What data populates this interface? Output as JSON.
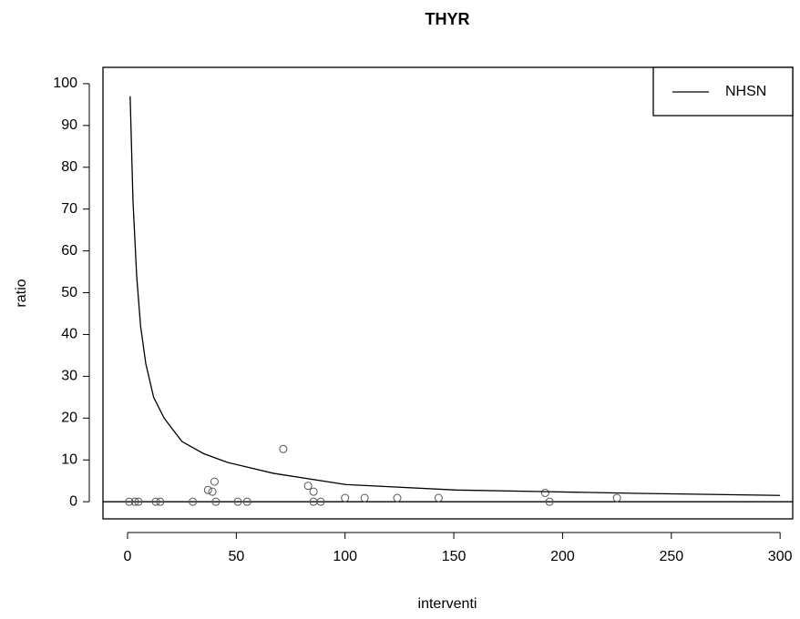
{
  "chart_data": {
    "type": "scatter",
    "title": "THYR",
    "x_label": "interventi",
    "y_label": "ratio",
    "xlim": [
      -11.3,
      305.8
    ],
    "ylim": [
      -4.1,
      103.9
    ],
    "xticks": [
      0,
      50,
      100,
      150,
      200,
      250,
      300
    ],
    "yticks": [
      0,
      10,
      20,
      30,
      40,
      50,
      60,
      70,
      80,
      90,
      100
    ],
    "hlines": [
      0
    ],
    "legend": "top-right",
    "points": {
      "color": "#555555",
      "x": [
        0.8,
        3.4,
        5,
        13,
        15,
        30,
        37,
        39,
        40,
        40.6,
        50.7,
        55,
        71.6,
        83,
        85.5,
        85.5,
        88.8,
        100,
        109,
        124,
        143,
        192,
        194,
        225
      ],
      "values": [
        0,
        0,
        0,
        0,
        0,
        0,
        2.8,
        2.4,
        4.8,
        0,
        0,
        0,
        12.6,
        3.8,
        2.4,
        0,
        0,
        0.9,
        0.9,
        0.9,
        0.9,
        2.1,
        0,
        0.9
      ]
    },
    "series": [
      {
        "name": "NHSN",
        "type": "line",
        "color": "#000000",
        "x": [
          1.2,
          2.5,
          4.2,
          6,
          8.4,
          12,
          16.8,
          25,
          35,
          46,
          67,
          100.5,
          151,
          193,
          235,
          300
        ],
        "values": [
          97,
          72,
          54,
          42,
          33,
          25,
          20,
          14.4,
          11.5,
          9.4,
          6.8,
          4.1,
          2.8,
          2.4,
          2.0,
          1.5
        ]
      }
    ]
  }
}
